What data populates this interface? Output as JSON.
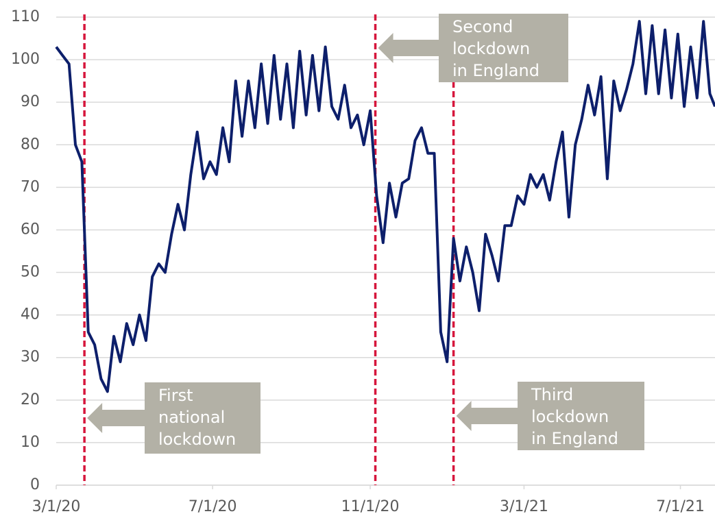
{
  "chart_data": {
    "type": "line",
    "x": [
      "3/1/20",
      "3/6/20",
      "3/11/20",
      "3/16/20",
      "3/21/20",
      "3/26/20",
      "3/31/20",
      "4/5/20",
      "4/10/20",
      "4/15/20",
      "4/20/20",
      "4/25/20",
      "4/30/20",
      "5/5/20",
      "5/10/20",
      "5/15/20",
      "5/20/20",
      "5/25/20",
      "5/30/20",
      "6/4/20",
      "6/9/20",
      "6/14/20",
      "6/19/20",
      "6/24/20",
      "6/29/20",
      "7/4/20",
      "7/9/20",
      "7/14/20",
      "7/19/20",
      "7/24/20",
      "7/29/20",
      "8/3/20",
      "8/8/20",
      "8/13/20",
      "8/18/20",
      "8/23/20",
      "8/28/20",
      "9/2/20",
      "9/7/20",
      "9/12/20",
      "9/17/20",
      "9/22/20",
      "9/27/20",
      "10/2/20",
      "10/7/20",
      "10/12/20",
      "10/17/20",
      "10/22/20",
      "10/27/20",
      "11/1/20",
      "11/6/20",
      "11/11/20",
      "11/16/20",
      "11/21/20",
      "11/26/20",
      "12/1/20",
      "12/6/20",
      "12/11/20",
      "12/16/20",
      "12/21/20",
      "12/26/20",
      "12/31/20",
      "1/5/21",
      "1/10/21",
      "1/15/21",
      "1/20/21",
      "1/25/21",
      "1/30/21",
      "2/4/21",
      "2/9/21",
      "2/14/21",
      "2/19/21",
      "2/24/21",
      "3/1/21",
      "3/6/21",
      "3/11/21",
      "3/16/21",
      "3/21/21",
      "3/26/21",
      "3/31/21",
      "4/5/21",
      "4/10/21",
      "4/15/21",
      "4/20/21",
      "4/25/21",
      "4/30/21",
      "5/5/21",
      "5/10/21",
      "5/15/21",
      "5/20/21",
      "5/25/21",
      "5/30/21",
      "6/4/21",
      "6/9/21",
      "6/14/21",
      "6/19/21",
      "6/24/21",
      "6/29/21",
      "7/4/21",
      "7/9/21",
      "7/14/21",
      "7/19/21",
      "7/24/21",
      "7/28/21"
    ],
    "series": [
      {
        "color": "#0d1f6b",
        "values": [
          103,
          101,
          99,
          80,
          76,
          36,
          33,
          25,
          22,
          35,
          29,
          38,
          33,
          40,
          34,
          49,
          52,
          50,
          59,
          66,
          60,
          73,
          83,
          72,
          76,
          73,
          84,
          76,
          95,
          82,
          95,
          84,
          99,
          85,
          101,
          86,
          99,
          84,
          102,
          87,
          101,
          88,
          103,
          89,
          86,
          94,
          84,
          87,
          80,
          88,
          68,
          57,
          71,
          63,
          71,
          72,
          81,
          84,
          78,
          78,
          36,
          29,
          58,
          48,
          56,
          50,
          41,
          59,
          54,
          48,
          61,
          61,
          68,
          66,
          73,
          70,
          73,
          67,
          76,
          83,
          63,
          80,
          86,
          94,
          87,
          96,
          72,
          95,
          88,
          93,
          99,
          109,
          92,
          108,
          92,
          107,
          91,
          106,
          89,
          103,
          91,
          109,
          92,
          89
        ]
      }
    ],
    "xlim": [
      "3/1/20",
      "7/28/21"
    ],
    "xticks": [
      "3/1/20",
      "7/1/20",
      "11/1/20",
      "3/1/21",
      "7/1/21"
    ],
    "ylim": [
      0,
      110
    ],
    "yticks": [
      0,
      10,
      20,
      30,
      40,
      50,
      60,
      70,
      80,
      90,
      100,
      110
    ],
    "grid": true,
    "annotation_color": "#b3b1a6",
    "marker_line_color": "#d6163c",
    "annotations": [
      {
        "date": "3/23/20",
        "lines": [
          "First",
          "national",
          "lockdown"
        ]
      },
      {
        "date": "11/5/20",
        "lines": [
          "Second",
          "lockdown",
          "in England"
        ]
      },
      {
        "date": "1/5/21",
        "lines": [
          "Third",
          "lockdown",
          "in England"
        ]
      }
    ]
  }
}
